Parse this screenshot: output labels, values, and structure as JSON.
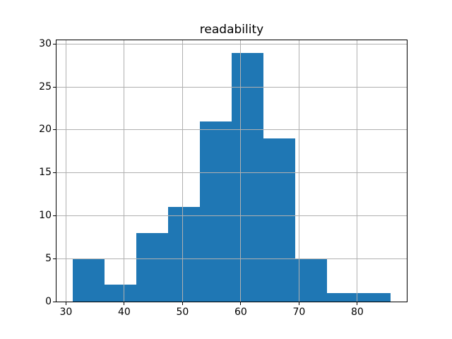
{
  "chart_data": {
    "type": "bar",
    "subtype": "histogram",
    "title": "readability",
    "xlabel": "",
    "ylabel": "",
    "bin_edges": [
      31.1,
      36.57,
      42.03,
      47.5,
      52.97,
      58.44,
      63.9,
      69.37,
      74.84,
      80.3,
      85.77
    ],
    "counts": [
      5,
      2,
      8,
      11,
      21,
      29,
      19,
      5,
      1,
      1
    ],
    "xticks": [
      30,
      40,
      50,
      60,
      70,
      80
    ],
    "yticks": [
      0,
      5,
      10,
      15,
      20,
      25,
      30
    ],
    "xlim": [
      28.37,
      88.5
    ],
    "ylim": [
      0,
      30.45
    ],
    "grid": true,
    "grid_over_bars": true,
    "legend": null,
    "colors": {
      "bar": "#1f77b4",
      "grid": "#b0b0b0",
      "spine": "#000000",
      "text": "#000000",
      "background": "#ffffff"
    }
  }
}
